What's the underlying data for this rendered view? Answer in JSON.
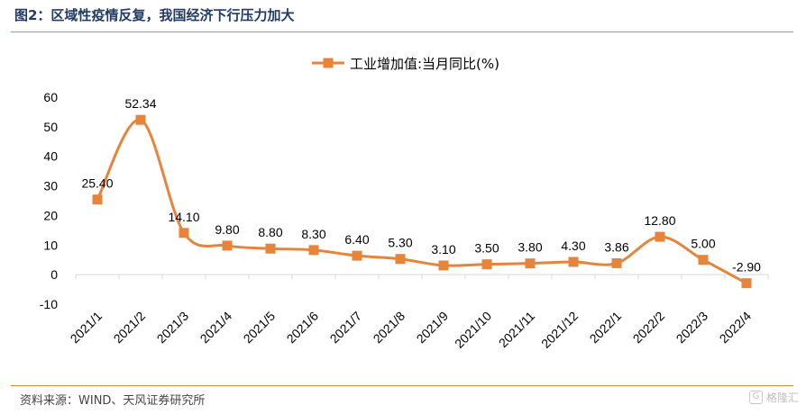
{
  "figure": {
    "title": "图2：区域性疫情反复，我国经济下行压力加大",
    "source": "资料来源：WIND、天风证券研究所",
    "watermark": "格隆汇",
    "watermark_icon": "G"
  },
  "colors": {
    "accent": "#e8833a",
    "title": "#1f3b66"
  },
  "chart_data": {
    "type": "line",
    "title": "",
    "xlabel": "",
    "ylabel": "",
    "ylim": [
      -10,
      60
    ],
    "yticks": [
      -10,
      0,
      10,
      20,
      30,
      40,
      50,
      60
    ],
    "legend_position": "top-center",
    "categories": [
      "2021/1",
      "2021/2",
      "2021/3",
      "2021/4",
      "2021/5",
      "2021/6",
      "2021/7",
      "2021/8",
      "2021/9",
      "2021/10",
      "2021/11",
      "2021/12",
      "2022/1",
      "2022/2",
      "2022/3",
      "2022/4"
    ],
    "series": [
      {
        "name": "工业增加值:当月同比(%)",
        "color": "#e8833a",
        "marker": "square",
        "smooth": true,
        "values": [
          25.4,
          52.34,
          14.1,
          9.8,
          8.8,
          8.3,
          6.4,
          5.3,
          3.1,
          3.5,
          3.8,
          4.3,
          3.86,
          12.8,
          5.0,
          -2.9
        ],
        "labels": [
          "25.40",
          "52.34",
          "14.10",
          "9.80",
          "8.80",
          "8.30",
          "6.40",
          "5.30",
          "3.10",
          "3.50",
          "3.80",
          "4.30",
          "3.86",
          "12.80",
          "5.00",
          "-2.90"
        ]
      }
    ]
  }
}
